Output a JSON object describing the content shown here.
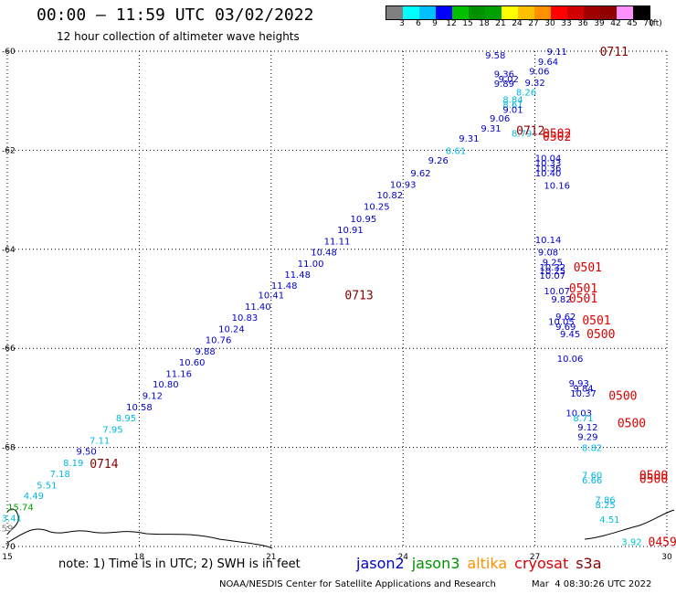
{
  "header": {
    "title": "00:00 – 11:59 UTC 03/02/2022",
    "subtitle": "12 hour collection of altimeter wave heights"
  },
  "legend": {
    "unit": "(ft)",
    "labels": [
      "3",
      "6",
      "9",
      "12",
      "15",
      "18",
      "21",
      "24",
      "27",
      "30",
      "33",
      "36",
      "39",
      "42",
      "45",
      "70"
    ],
    "colors": [
      "#808080",
      "#00ffff",
      "#00c0ff",
      "#0000ff",
      "#00c000",
      "#009000",
      "#00a000",
      "#ffff00",
      "#ffc000",
      "#ff9000",
      "#ff0000",
      "#d00000",
      "#a00000",
      "#900000",
      "#ff90ff",
      "#000000"
    ]
  },
  "axes": {
    "x_ticks": [
      "15",
      "18",
      "21",
      "24",
      "27",
      "30"
    ],
    "y_ticks": [
      "-60",
      "-62",
      "-64",
      "-66",
      "-68",
      "-70"
    ]
  },
  "map": {
    "points": [
      {
        "v": "9.58",
        "lon": 26.1,
        "lat": -60.07,
        "c": "#0000cc"
      },
      {
        "v": "9.11",
        "lon": 27.5,
        "lat": -60.0,
        "c": "#0000cc"
      },
      {
        "v": "9.64",
        "lon": 27.3,
        "lat": -60.2,
        "c": "#0000cc"
      },
      {
        "v": "9.36",
        "lon": 26.3,
        "lat": -60.45,
        "c": "#0000cc"
      },
      {
        "v": "9.06",
        "lon": 27.1,
        "lat": -60.4,
        "c": "#0000cc"
      },
      {
        "v": "9.02",
        "lon": 26.4,
        "lat": -60.55,
        "c": "#0000cc"
      },
      {
        "v": "9.89",
        "lon": 26.3,
        "lat": -60.65,
        "c": "#0000cc"
      },
      {
        "v": "9.32",
        "lon": 27.0,
        "lat": -60.63,
        "c": "#0000cc"
      },
      {
        "v": "8.26",
        "lon": 26.8,
        "lat": -60.82,
        "c": "#00b8e0"
      },
      {
        "v": "8.84",
        "lon": 26.5,
        "lat": -60.97,
        "c": "#00b8e0"
      },
      {
        "v": "8.61",
        "lon": 26.5,
        "lat": -61.07,
        "c": "#00b8e0"
      },
      {
        "v": "9.01",
        "lon": 26.5,
        "lat": -61.17,
        "c": "#0000cc"
      },
      {
        "v": "9.06",
        "lon": 26.2,
        "lat": -61.35,
        "c": "#0000cc"
      },
      {
        "v": "9.31",
        "lon": 26.0,
        "lat": -61.55,
        "c": "#0000cc"
      },
      {
        "v": "8.79",
        "lon": 26.7,
        "lat": -61.65,
        "c": "#00b8e0"
      },
      {
        "v": "9.31",
        "lon": 25.5,
        "lat": -61.75,
        "c": "#0000cc"
      },
      {
        "v": "8.61",
        "lon": 25.2,
        "lat": -62.0,
        "c": "#00b8e0"
      },
      {
        "v": "9.26",
        "lon": 24.8,
        "lat": -62.2,
        "c": "#0000cc"
      },
      {
        "v": "10.04",
        "lon": 27.3,
        "lat": -62.15,
        "c": "#0000cc"
      },
      {
        "v": "10.33",
        "lon": 27.3,
        "lat": -62.25,
        "c": "#0000cc"
      },
      {
        "v": "10.36",
        "lon": 27.3,
        "lat": -62.35,
        "c": "#0000cc"
      },
      {
        "v": "10.40",
        "lon": 27.3,
        "lat": -62.45,
        "c": "#0000cc"
      },
      {
        "v": "9.62",
        "lon": 24.4,
        "lat": -62.45,
        "c": "#0000cc"
      },
      {
        "v": "10.16",
        "lon": 27.5,
        "lat": -62.7,
        "c": "#0000cc"
      },
      {
        "v": "10.93",
        "lon": 24.0,
        "lat": -62.68,
        "c": "#0000cc"
      },
      {
        "v": "10.82",
        "lon": 23.7,
        "lat": -62.9,
        "c": "#0000cc"
      },
      {
        "v": "10.25",
        "lon": 23.4,
        "lat": -63.13,
        "c": "#0000cc"
      },
      {
        "v": "10.95",
        "lon": 23.1,
        "lat": -63.38,
        "c": "#0000cc"
      },
      {
        "v": "10.91",
        "lon": 22.8,
        "lat": -63.6,
        "c": "#0000cc"
      },
      {
        "v": "11.11",
        "lon": 22.5,
        "lat": -63.83,
        "c": "#0000cc"
      },
      {
        "v": "10.14",
        "lon": 27.3,
        "lat": -63.8,
        "c": "#0000cc"
      },
      {
        "v": "10.48",
        "lon": 22.2,
        "lat": -64.05,
        "c": "#0000cc"
      },
      {
        "v": "9.08",
        "lon": 27.3,
        "lat": -64.05,
        "c": "#0000cc"
      },
      {
        "v": "9.25",
        "lon": 27.4,
        "lat": -64.25,
        "c": "#0000cc"
      },
      {
        "v": "11.00",
        "lon": 21.9,
        "lat": -64.28,
        "c": "#0000cc"
      },
      {
        "v": "10.32",
        "lon": 27.4,
        "lat": -64.35,
        "c": "#0000cc"
      },
      {
        "v": "10.25",
        "lon": 27.4,
        "lat": -64.43,
        "c": "#0000cc"
      },
      {
        "v": "10.07",
        "lon": 27.4,
        "lat": -64.52,
        "c": "#0000cc"
      },
      {
        "v": "11.48",
        "lon": 21.6,
        "lat": -64.5,
        "c": "#0000cc"
      },
      {
        "v": "11.48",
        "lon": 21.3,
        "lat": -64.72,
        "c": "#0000cc"
      },
      {
        "v": "10.07",
        "lon": 27.5,
        "lat": -64.83,
        "c": "#0000cc"
      },
      {
        "v": "10.41",
        "lon": 21.0,
        "lat": -64.92,
        "c": "#0000cc"
      },
      {
        "v": "9.82",
        "lon": 27.6,
        "lat": -65.0,
        "c": "#0000cc"
      },
      {
        "v": "11.40",
        "lon": 20.7,
        "lat": -65.15,
        "c": "#0000cc"
      },
      {
        "v": "9.62",
        "lon": 27.7,
        "lat": -65.35,
        "c": "#0000cc"
      },
      {
        "v": "10.83",
        "lon": 20.4,
        "lat": -65.37,
        "c": "#0000cc"
      },
      {
        "v": "10.05",
        "lon": 27.6,
        "lat": -65.45,
        "c": "#0000cc"
      },
      {
        "v": "9.69",
        "lon": 27.7,
        "lat": -65.55,
        "c": "#0000cc"
      },
      {
        "v": "10.24",
        "lon": 20.1,
        "lat": -65.6,
        "c": "#0000cc"
      },
      {
        "v": "9.45",
        "lon": 27.8,
        "lat": -65.7,
        "c": "#0000cc"
      },
      {
        "v": "10.76",
        "lon": 19.8,
        "lat": -65.82,
        "c": "#0000cc"
      },
      {
        "v": "9.88",
        "lon": 19.5,
        "lat": -66.05,
        "c": "#0000cc"
      },
      {
        "v": "10.06",
        "lon": 27.8,
        "lat": -66.2,
        "c": "#0000cc"
      },
      {
        "v": "10.60",
        "lon": 19.2,
        "lat": -66.27,
        "c": "#0000cc"
      },
      {
        "v": "11.16",
        "lon": 18.9,
        "lat": -66.5,
        "c": "#0000cc"
      },
      {
        "v": "9.93",
        "lon": 28.0,
        "lat": -66.7,
        "c": "#0000cc"
      },
      {
        "v": "10.80",
        "lon": 18.6,
        "lat": -66.72,
        "c": "#0000cc"
      },
      {
        "v": "9.84",
        "lon": 28.1,
        "lat": -66.8,
        "c": "#0000cc"
      },
      {
        "v": "10.37",
        "lon": 28.1,
        "lat": -66.9,
        "c": "#0000cc"
      },
      {
        "v": "9.12",
        "lon": 18.3,
        "lat": -66.95,
        "c": "#0000cc"
      },
      {
        "v": "10.58",
        "lon": 18.0,
        "lat": -67.18,
        "c": "#0000cc"
      },
      {
        "v": "10.03",
        "lon": 28.0,
        "lat": -67.3,
        "c": "#0000cc"
      },
      {
        "v": "8.95",
        "lon": 17.7,
        "lat": -67.4,
        "c": "#00b8e0"
      },
      {
        "v": "8.71",
        "lon": 28.1,
        "lat": -67.4,
        "c": "#00b8e0"
      },
      {
        "v": "9.12",
        "lon": 28.2,
        "lat": -67.58,
        "c": "#0000cc"
      },
      {
        "v": "7.95",
        "lon": 17.4,
        "lat": -67.63,
        "c": "#00b8e0"
      },
      {
        "v": "9.29",
        "lon": 28.2,
        "lat": -67.78,
        "c": "#0000cc"
      },
      {
        "v": "7.11",
        "lon": 17.1,
        "lat": -67.85,
        "c": "#00b8e0"
      },
      {
        "v": "8.82",
        "lon": 28.3,
        "lat": -68.0,
        "c": "#00b8e0"
      },
      {
        "v": "9.50",
        "lon": 16.8,
        "lat": -68.07,
        "c": "#0000cc"
      },
      {
        "v": "8.19",
        "lon": 16.5,
        "lat": -68.3,
        "c": "#00b8e0"
      },
      {
        "v": "7.60",
        "lon": 28.3,
        "lat": -68.55,
        "c": "#00b8e0"
      },
      {
        "v": "6.66",
        "lon": 28.3,
        "lat": -68.65,
        "c": "#00b8e0"
      },
      {
        "v": "7.18",
        "lon": 16.2,
        "lat": -68.52,
        "c": "#00b8e0"
      },
      {
        "v": "5.51",
        "lon": 15.9,
        "lat": -68.75,
        "c": "#00b8e0"
      },
      {
        "v": "4.49",
        "lon": 15.6,
        "lat": -68.97,
        "c": "#00b8e0"
      },
      {
        "v": "15.74",
        "lon": 15.3,
        "lat": -69.2,
        "c": "#00a000"
      },
      {
        "v": "7.86",
        "lon": 28.6,
        "lat": -69.05,
        "c": "#00b8e0"
      },
      {
        "v": "8.25",
        "lon": 28.6,
        "lat": -69.15,
        "c": "#00b8e0"
      },
      {
        "v": "3.41",
        "lon": 15.1,
        "lat": -69.42,
        "c": "#00c8d8"
      },
      {
        "v": "4.51",
        "lon": 28.7,
        "lat": -69.45,
        "c": "#00c8d8"
      },
      {
        "v": "0.59",
        "lon": 14.9,
        "lat": -69.62,
        "c": "#808080"
      },
      {
        "v": "1.56",
        "lon": 14.6,
        "lat": -69.8,
        "c": "#808080"
      },
      {
        "v": "3.92",
        "lon": 29.2,
        "lat": -69.9,
        "c": "#00c8d8"
      }
    ],
    "timestamps": [
      {
        "t": "0711",
        "lon": 28.8,
        "lat": -60.0,
        "c": "#880000"
      },
      {
        "t": "0712",
        "lon": 26.9,
        "lat": -61.6,
        "c": "#880000"
      },
      {
        "t": "0502",
        "lon": 27.5,
        "lat": -61.65,
        "c": "#dd0000"
      },
      {
        "t": "0502",
        "lon": 27.5,
        "lat": -61.72,
        "c": "#dd0000"
      },
      {
        "t": "0713",
        "lon": 23.0,
        "lat": -64.92,
        "c": "#880000"
      },
      {
        "t": "0501",
        "lon": 28.2,
        "lat": -64.35,
        "c": "#dd0000"
      },
      {
        "t": "0501",
        "lon": 28.1,
        "lat": -64.78,
        "c": "#dd0000"
      },
      {
        "t": "0501",
        "lon": 28.1,
        "lat": -64.98,
        "c": "#dd0000"
      },
      {
        "t": "0501",
        "lon": 28.4,
        "lat": -65.42,
        "c": "#dd0000"
      },
      {
        "t": "0500",
        "lon": 28.5,
        "lat": -65.7,
        "c": "#dd0000"
      },
      {
        "t": "0500",
        "lon": 29.0,
        "lat": -66.95,
        "c": "#dd0000"
      },
      {
        "t": "0500",
        "lon": 29.2,
        "lat": -67.5,
        "c": "#dd0000"
      },
      {
        "t": "0714",
        "lon": 17.2,
        "lat": -68.32,
        "c": "#880000"
      },
      {
        "t": "0500",
        "lon": 29.7,
        "lat": -68.55,
        "c": "#dd0000"
      },
      {
        "t": "0500",
        "lon": 29.7,
        "lat": -68.63,
        "c": "#dd0000"
      },
      {
        "t": "0459",
        "lon": 29.9,
        "lat": -69.9,
        "c": "#dd0000"
      }
    ]
  },
  "note": "note: 1) Time is in UTC; 2) SWH is in feet",
  "satellites": [
    {
      "name": "jason2",
      "color": "#0000cc"
    },
    {
      "name": "jason3",
      "color": "#009000"
    },
    {
      "name": "altika",
      "color": "#ff9000"
    },
    {
      "name": "cryosat",
      "color": "#dd0000"
    },
    {
      "name": "s3a",
      "color": "#880000"
    }
  ],
  "footer": {
    "credit": "NOAA/NESDIS Center for Satellite Applications and Research",
    "stamp": "Mar  4 08:30:26 UTC 2022"
  }
}
